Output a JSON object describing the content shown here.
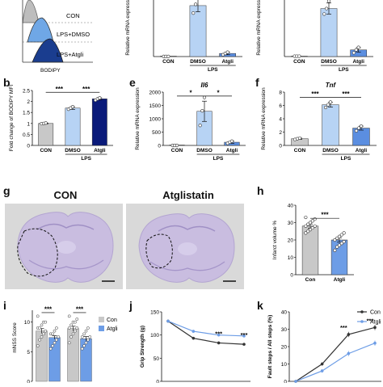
{
  "colors": {
    "con": "#c8c8c8",
    "dmso": "#b7d3f4",
    "atgli": "#0a1a7a",
    "blue_mid": "#5b8ee0",
    "line_con": "#333333",
    "line_atgli": "#6d9de6"
  },
  "panel_a": {
    "x_label": "BODIPY",
    "legend": [
      "CON",
      "LPS+DMSO",
      "LPS+Atgli"
    ]
  },
  "panel_b": {
    "letter": "b",
    "chart_data": {
      "type": "bar",
      "categories": [
        "CON",
        "DMSO",
        "Atgli"
      ],
      "group_label": "LPS",
      "values": [
        1.0,
        1.7,
        2.12
      ],
      "errors": [
        0.02,
        0.06,
        0.05
      ],
      "points": [
        [
          0.99,
          1.0,
          1.02
        ],
        [
          1.65,
          1.7,
          1.76
        ],
        [
          2.06,
          2.12,
          2.16
        ]
      ],
      "ylabel": "Fold change of BODIPY MFI",
      "ylim": [
        0,
        2.5
      ],
      "yticks": [
        0,
        0.5,
        1.0,
        1.5,
        2.0,
        2.5
      ],
      "significance": [
        {
          "from": 0,
          "to": 1,
          "label": "***"
        },
        {
          "from": 1,
          "to": 2,
          "label": "***"
        }
      ]
    }
  },
  "panel_c_partial": {
    "chart_data": {
      "type": "bar",
      "categories": [
        "CON",
        "DMSO",
        "Atgli"
      ],
      "group_label": "LPS",
      "values": [
        1,
        410,
        25
      ],
      "errors": [
        0,
        50,
        10
      ],
      "points": [
        [
          1,
          1,
          1
        ],
        [
          350,
          420,
          470
        ],
        [
          15,
          25,
          35
        ]
      ],
      "ylabel": "Relative mRNA expression",
      "ylim": [
        0,
        520
      ]
    }
  },
  "panel_d_partial": {
    "chart_data": {
      "type": "bar",
      "categories": [
        "CON",
        "DMSO",
        "Atgli"
      ],
      "group_label": "LPS",
      "values": [
        1,
        130,
        18
      ],
      "errors": [
        0,
        15,
        6
      ],
      "points": [
        [
          1,
          1,
          1
        ],
        [
          115,
          130,
          150
        ],
        [
          10,
          18,
          25
        ]
      ],
      "ylabel": "Relative mRNA expression",
      "ylim": [
        0,
        175
      ]
    }
  },
  "panel_e": {
    "letter": "e",
    "chart_data": {
      "type": "bar",
      "title": "Il6",
      "categories": [
        "CON",
        "DMSO",
        "Atgli"
      ],
      "group_label": "LPS",
      "values": [
        1,
        1280,
        120
      ],
      "errors": [
        0,
        380,
        40
      ],
      "points": [
        [
          1,
          1,
          1
        ],
        [
          750,
          1300,
          1800
        ],
        [
          80,
          120,
          160
        ]
      ],
      "ylabel": "Relative mRNA expression",
      "ylim": [
        0,
        2000
      ],
      "yticks": [
        0,
        500,
        1000,
        1500,
        2000
      ],
      "significance": [
        {
          "from": 0,
          "to": 1,
          "label": "*"
        },
        {
          "from": 1,
          "to": 2,
          "label": "*"
        }
      ]
    }
  },
  "panel_f": {
    "letter": "f",
    "chart_data": {
      "type": "bar",
      "title": "Tnf",
      "categories": [
        "CON",
        "DMSO",
        "Atgli"
      ],
      "group_label": "LPS",
      "values": [
        1.0,
        6.1,
        2.6
      ],
      "errors": [
        0.1,
        0.35,
        0.3
      ],
      "points": [
        [
          0.9,
          1.0,
          1.1
        ],
        [
          5.7,
          6.1,
          6.5
        ],
        [
          2.2,
          2.6,
          2.9
        ]
      ],
      "ylabel": "Relative mRNA expression",
      "ylim": [
        0,
        8
      ],
      "yticks": [
        0,
        2,
        4,
        6,
        8
      ],
      "significance": [
        {
          "from": 0,
          "to": 1,
          "label": "***"
        },
        {
          "from": 1,
          "to": 2,
          "label": "***"
        }
      ]
    }
  },
  "panel_g": {
    "letter": "g",
    "titles": [
      "CON",
      "Atglistatin"
    ]
  },
  "panel_h": {
    "letter": "h",
    "chart_data": {
      "type": "bar",
      "categories": [
        "Con",
        "Atgli"
      ],
      "values": [
        28,
        20
      ],
      "errors": [
        1.2,
        1.3
      ],
      "points": [
        [
          24,
          25,
          26,
          27,
          28,
          28,
          29,
          30,
          31,
          32,
          33
        ],
        [
          14,
          16,
          17,
          18,
          19,
          20,
          21,
          22,
          23,
          24
        ]
      ],
      "ylabel": "Infarct volume %",
      "ylim": [
        0,
        40
      ],
      "yticks": [
        0,
        10,
        20,
        30,
        40
      ],
      "significance": [
        {
          "from": 0,
          "to": 1,
          "label": "***"
        }
      ]
    }
  },
  "panel_i": {
    "letter": "i",
    "chart_data": {
      "type": "bar",
      "series": [
        {
          "name": "Con",
          "values": [
            8.5,
            8.9
          ]
        },
        {
          "name": "Atgli",
          "values": [
            7.4,
            7.2
          ]
        }
      ],
      "categories": [
        "",
        ""
      ],
      "errors": [
        [
          0.4,
          0.4
        ],
        [
          0.3,
          0.35
        ]
      ],
      "points": [
        [
          [
            6,
            7,
            7.5,
            8,
            8.5,
            9,
            9,
            9.5,
            10,
            10,
            11
          ],
          [
            6.5,
            7.5,
            8,
            8.5,
            9,
            9,
            9.5,
            10,
            10,
            10.5,
            11
          ]
        ],
        [
          [
            5.5,
            6,
            6.5,
            7,
            7.5,
            8,
            8,
            8.5,
            9
          ],
          [
            5.5,
            6,
            6.5,
            7,
            7.5,
            7.5,
            8,
            8.5,
            9
          ]
        ]
      ],
      "ylabel": "mNSS Score",
      "ylim": [
        0,
        12
      ],
      "yticks": [
        0,
        5,
        10
      ],
      "significance": [
        {
          "group": 0,
          "label": "***"
        },
        {
          "group": 1,
          "label": "***"
        }
      ],
      "legend": [
        "Con",
        "Atgli"
      ]
    }
  },
  "panel_j": {
    "letter": "j",
    "chart_data": {
      "type": "line",
      "x": [
        0,
        1,
        2,
        3
      ],
      "series": [
        {
          "name": "Con",
          "values": [
            130,
            93,
            83,
            80
          ]
        },
        {
          "name": "Atgli",
          "values": [
            130,
            108,
            100,
            98
          ]
        }
      ],
      "errors": [
        [
          1,
          3,
          3,
          3
        ],
        [
          1,
          3,
          3,
          3
        ]
      ],
      "ylabel": "Grip Strength (g)",
      "ylim": [
        0,
        150
      ],
      "yticks": [
        0,
        50,
        100,
        150
      ],
      "significance": [
        {
          "x": 2,
          "label": "***"
        },
        {
          "x": 3,
          "label": "***"
        }
      ]
    }
  },
  "panel_k": {
    "letter": "k",
    "chart_data": {
      "type": "line",
      "x": [
        0,
        1,
        2,
        3
      ],
      "series": [
        {
          "name": "Con",
          "values": [
            0,
            10,
            27,
            31
          ]
        },
        {
          "name": "Atgli",
          "values": [
            0,
            6,
            16,
            22
          ]
        }
      ],
      "errors": [
        [
          0,
          1,
          1.5,
          1.5
        ],
        [
          0,
          1,
          1.5,
          1.5
        ]
      ],
      "ylabel": "Fault steps / All steps (%)",
      "ylim": [
        0,
        40
      ],
      "yticks": [
        0,
        10,
        20,
        30,
        40
      ],
      "significance": [
        {
          "x": 2,
          "label": "***"
        },
        {
          "x": 3,
          "label": "***"
        }
      ],
      "legend": [
        "Con",
        "Atgli"
      ]
    }
  }
}
